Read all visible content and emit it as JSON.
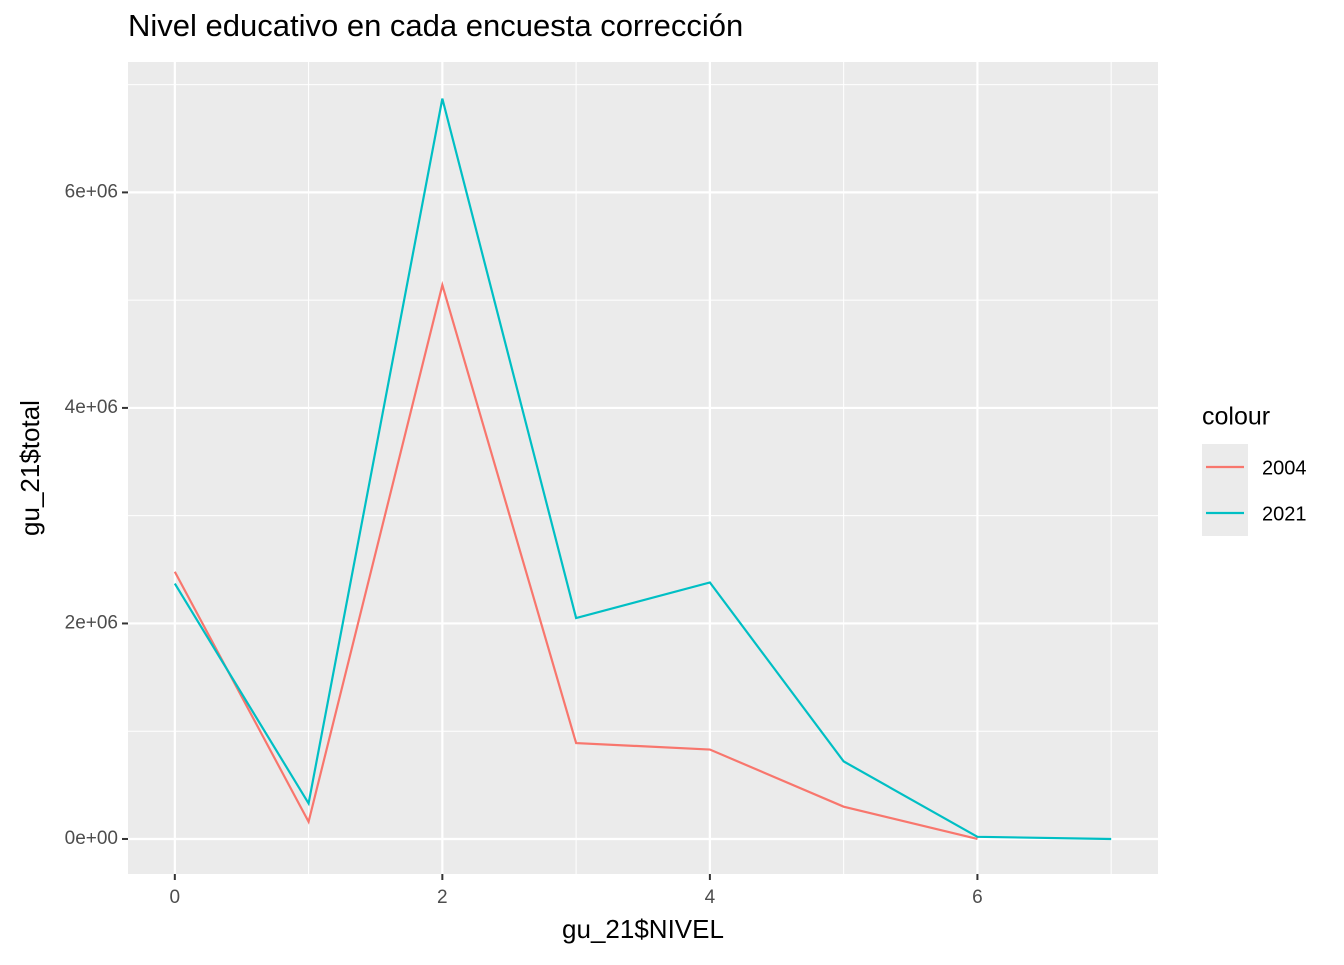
{
  "chart_data": {
    "type": "line",
    "title": "Nivel educativo en cada encuesta corrección",
    "x_label": "gu_21$NIVEL",
    "y_label": "gu_21$total",
    "legend_title": "colour",
    "legend_position": "right",
    "x": [
      0,
      1,
      2,
      3,
      4,
      5,
      6,
      7
    ],
    "series": [
      {
        "name": "2004",
        "color": "#F8766D",
        "values": [
          2480000,
          160000,
          5140000,
          890000,
          830000,
          300000,
          0,
          null
        ]
      },
      {
        "name": "2021",
        "color": "#00BFC4",
        "values": [
          2370000,
          330000,
          6870000,
          2050000,
          2380000,
          720000,
          20000,
          0
        ]
      }
    ],
    "xlim": [
      -0.35,
      7.35
    ],
    "ylim": [
      -325000,
      7210000
    ],
    "xticks": [
      0,
      2,
      4,
      6
    ],
    "yticks": [
      {
        "value": 0,
        "label": "0e+00"
      },
      {
        "value": 2000000,
        "label": "2e+06"
      },
      {
        "value": 4000000,
        "label": "4e+06"
      },
      {
        "value": 6000000,
        "label": "6e+06"
      }
    ],
    "x_minor_grid": [
      1,
      3,
      5,
      7
    ],
    "y_minor_grid": [
      1000000,
      3000000,
      5000000,
      7000000
    ],
    "grid": true
  }
}
